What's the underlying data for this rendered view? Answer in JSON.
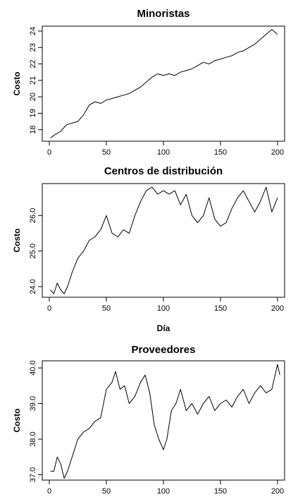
{
  "chart_data": [
    {
      "type": "line",
      "title": "Minoristas",
      "xlabel": "",
      "ylabel": "Costo",
      "xlim": [
        0,
        200
      ],
      "ylim": [
        17.3,
        24.3
      ],
      "xticks": [
        0,
        50,
        100,
        150,
        200
      ],
      "yticks": [
        18,
        19,
        20,
        21,
        22,
        23,
        24
      ],
      "grid": false,
      "legend": "none",
      "series": [
        {
          "x": [
            1,
            5,
            10,
            15,
            20,
            25,
            30,
            35,
            40,
            45,
            50,
            55,
            60,
            65,
            70,
            75,
            80,
            85,
            90,
            95,
            100,
            105,
            110,
            115,
            120,
            125,
            130,
            135,
            140,
            145,
            150,
            155,
            160,
            165,
            170,
            175,
            180,
            185,
            190,
            195,
            200
          ],
          "values": [
            17.5,
            17.7,
            17.9,
            18.3,
            18.4,
            18.5,
            18.9,
            19.5,
            19.7,
            19.6,
            19.8,
            19.9,
            20.0,
            20.1,
            20.2,
            20.4,
            20.6,
            20.9,
            21.2,
            21.4,
            21.3,
            21.4,
            21.3,
            21.5,
            21.6,
            21.7,
            21.9,
            22.1,
            22.0,
            22.2,
            22.3,
            22.4,
            22.5,
            22.7,
            22.8,
            23.0,
            23.2,
            23.5,
            23.8,
            24.1,
            23.8
          ]
        }
      ]
    },
    {
      "type": "line",
      "title": "Centros de distribución",
      "xlabel": "Día",
      "ylabel": "Costo",
      "xlim": [
        0,
        200
      ],
      "ylim": [
        23.7,
        26.9
      ],
      "xticks": [
        0,
        50,
        100,
        150,
        200
      ],
      "yticks": [
        24.0,
        25.0,
        26.0
      ],
      "grid": false,
      "legend": "none",
      "series": [
        {
          "x": [
            1,
            4,
            7,
            10,
            13,
            16,
            20,
            25,
            30,
            35,
            40,
            45,
            50,
            55,
            60,
            65,
            70,
            75,
            80,
            85,
            90,
            95,
            100,
            105,
            110,
            115,
            120,
            125,
            130,
            135,
            140,
            145,
            150,
            155,
            160,
            165,
            170,
            175,
            180,
            185,
            190,
            195,
            200
          ],
          "values": [
            23.9,
            23.8,
            24.1,
            23.9,
            23.8,
            24.0,
            24.4,
            24.8,
            25.0,
            25.3,
            25.4,
            25.6,
            26.0,
            25.5,
            25.4,
            25.6,
            25.5,
            26.0,
            26.4,
            26.7,
            26.8,
            26.6,
            26.7,
            26.6,
            26.7,
            26.3,
            26.6,
            26.0,
            25.8,
            26.0,
            26.5,
            25.9,
            25.7,
            25.8,
            26.2,
            26.5,
            26.7,
            26.4,
            26.1,
            26.4,
            26.8,
            26.1,
            26.5
          ]
        }
      ]
    },
    {
      "type": "line",
      "title": "Proveedores",
      "xlabel": "",
      "ylabel": "Costo",
      "xlim": [
        0,
        200
      ],
      "ylim": [
        36.85,
        40.2
      ],
      "xticks": [
        0,
        50,
        100,
        150,
        200
      ],
      "yticks": [
        37.0,
        38.0,
        39.0,
        40.0
      ],
      "grid": false,
      "legend": "none",
      "series": [
        {
          "x": [
            1,
            4,
            7,
            10,
            13,
            16,
            20,
            25,
            30,
            35,
            40,
            45,
            50,
            55,
            58,
            62,
            66,
            70,
            75,
            80,
            84,
            88,
            92,
            96,
            100,
            103,
            107,
            111,
            115,
            120,
            125,
            130,
            135,
            140,
            145,
            150,
            155,
            160,
            165,
            170,
            175,
            180,
            185,
            190,
            195,
            200,
            202
          ],
          "values": [
            37.1,
            37.1,
            37.5,
            37.3,
            36.9,
            37.1,
            37.5,
            38.0,
            38.2,
            38.3,
            38.5,
            38.6,
            39.4,
            39.6,
            39.9,
            39.4,
            39.5,
            39.0,
            39.2,
            39.6,
            39.8,
            39.3,
            38.4,
            38.0,
            37.7,
            38.0,
            38.8,
            39.0,
            39.4,
            38.8,
            39.0,
            38.7,
            39.0,
            39.2,
            38.8,
            39.0,
            39.1,
            38.9,
            39.2,
            39.4,
            39.0,
            39.3,
            39.5,
            39.3,
            39.4,
            40.1,
            39.8
          ]
        }
      ]
    }
  ]
}
